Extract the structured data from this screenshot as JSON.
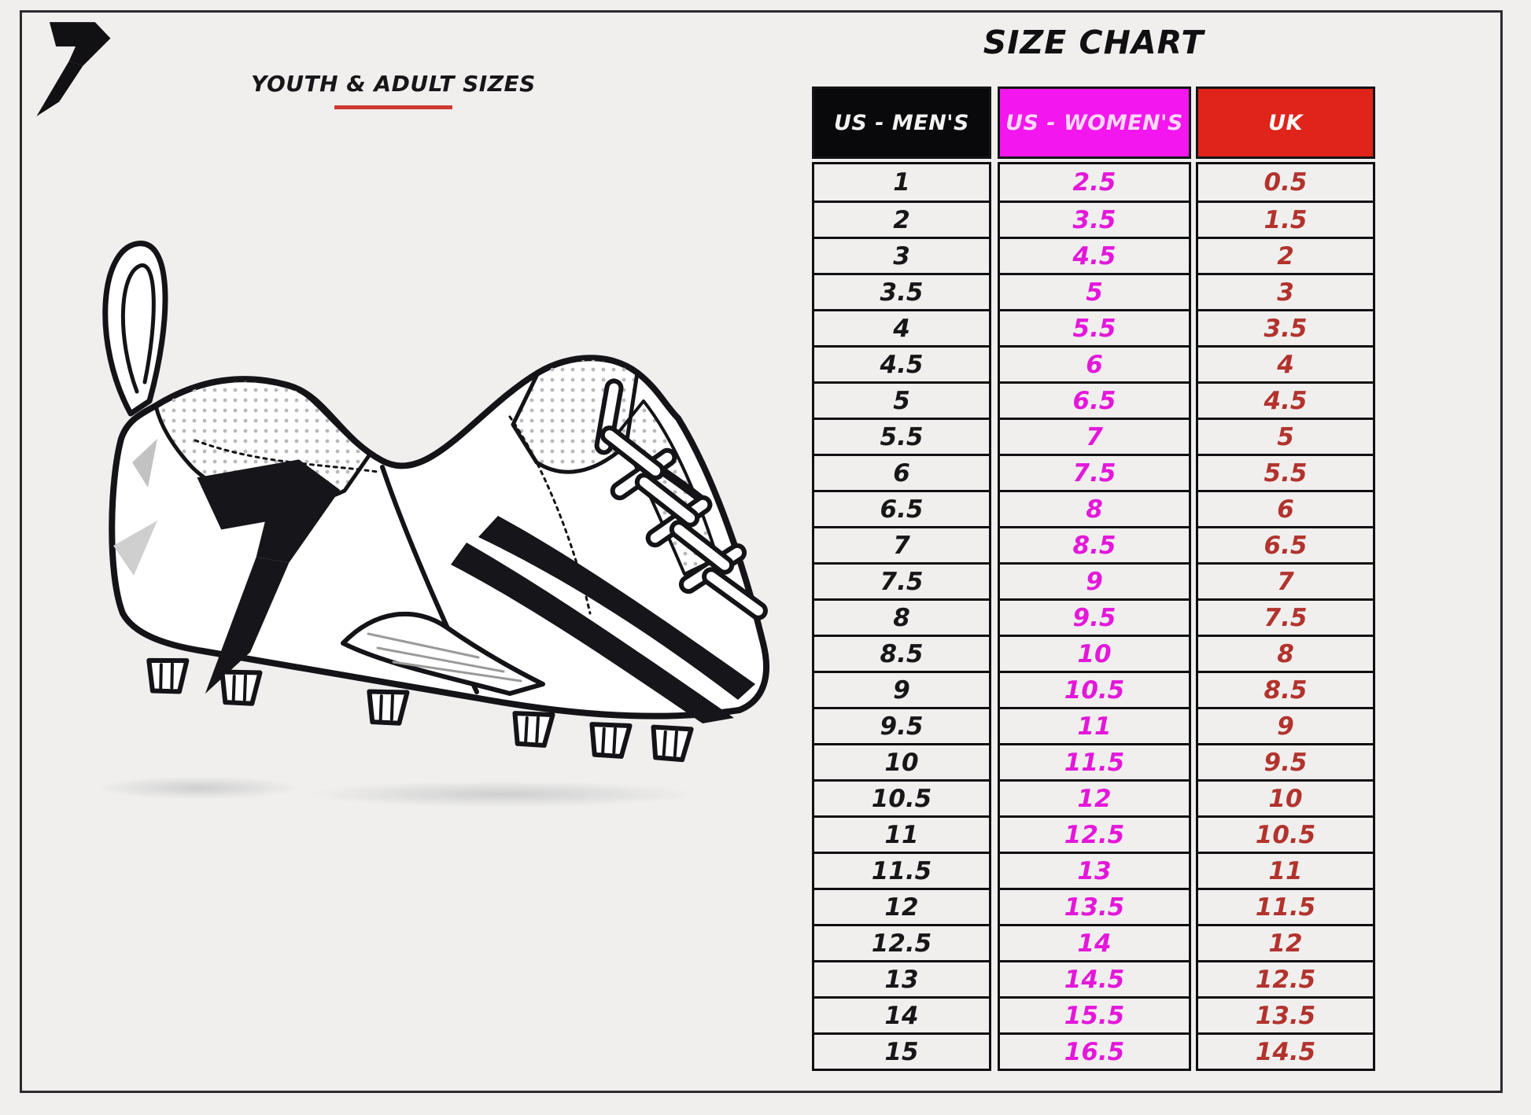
{
  "header": {
    "subtitle": "YOUTH & ADULT SIZES",
    "underline_color": "#cd3a32",
    "logo": "phenom-p-logo"
  },
  "chart_data": {
    "type": "table",
    "title": "SIZE CHART",
    "columns": [
      {
        "label": "US - MEN'S",
        "header_bg": "#09090b",
        "header_text": "#f2f2f2",
        "value_color": "#17171a"
      },
      {
        "label": "US - WOMEN'S",
        "header_bg": "#f316ee",
        "header_text": "#ffd9f6",
        "value_color": "#e417da"
      },
      {
        "label": "UK",
        "header_bg": "#df241b",
        "header_text": "#ffffff",
        "value_color": "#b2332d"
      }
    ],
    "rows": [
      [
        "1",
        "2.5",
        "0.5"
      ],
      [
        "2",
        "3.5",
        "1.5"
      ],
      [
        "3",
        "4.5",
        "2"
      ],
      [
        "3.5",
        "5",
        "3"
      ],
      [
        "4",
        "5.5",
        "3.5"
      ],
      [
        "4.5",
        "6",
        "4"
      ],
      [
        "5",
        "6.5",
        "4.5"
      ],
      [
        "5.5",
        "7",
        "5"
      ],
      [
        "6",
        "7.5",
        "5.5"
      ],
      [
        "6.5",
        "8",
        "6"
      ],
      [
        "7",
        "8.5",
        "6.5"
      ],
      [
        "7.5",
        "9",
        "7"
      ],
      [
        "8",
        "9.5",
        "7.5"
      ],
      [
        "8.5",
        "10",
        "8"
      ],
      [
        "9",
        "10.5",
        "8.5"
      ],
      [
        "9.5",
        "11",
        "9"
      ],
      [
        "10",
        "11.5",
        "9.5"
      ],
      [
        "10.5",
        "12",
        "10"
      ],
      [
        "11",
        "12.5",
        "10.5"
      ],
      [
        "11.5",
        "13",
        "11"
      ],
      [
        "12",
        "13.5",
        "11.5"
      ],
      [
        "12.5",
        "14",
        "12"
      ],
      [
        "13",
        "14.5",
        "12.5"
      ],
      [
        "14",
        "15.5",
        "13.5"
      ],
      [
        "15",
        "16.5",
        "14.5"
      ]
    ]
  },
  "colors": {
    "background": "#f0efee",
    "grid": "#101012",
    "ink": "#141418"
  }
}
